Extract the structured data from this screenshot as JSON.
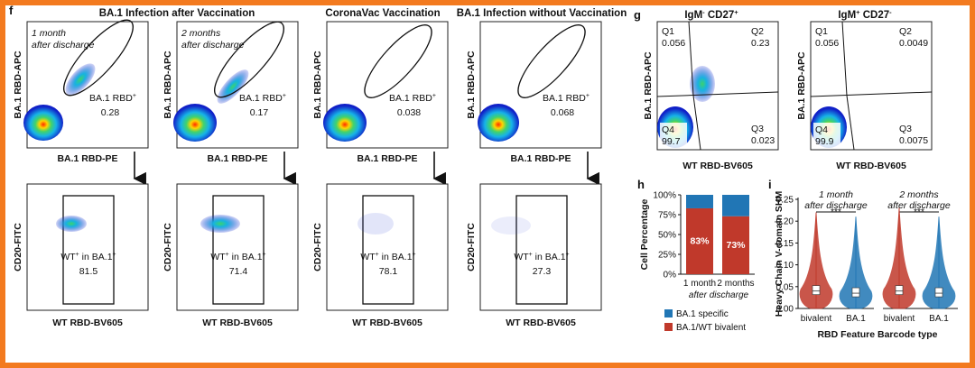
{
  "panel_labels": {
    "f": "f",
    "g": "g",
    "h": "h",
    "i": "i"
  },
  "panel_f": {
    "column_titles": [
      "BA.1 Infection after Vaccination",
      "CoronaVac Vaccination",
      "BA.1 Infection without Vaccination"
    ],
    "timepoints": [
      "1 month",
      "after discharge",
      "2 months",
      "after discharge"
    ],
    "axis_labels": {
      "top_y": "BA.1 RBD-APC",
      "top_x": "BA.1 RBD-PE",
      "bottom_y": "CD20-FITC",
      "bottom_x": "WT RBD-BV605"
    },
    "top_plots": [
      {
        "gate_label": "BA.1 RBD",
        "gate_sup": "+",
        "value": "0.28"
      },
      {
        "gate_label": "BA.1 RBD",
        "gate_sup": "+",
        "value": "0.17"
      },
      {
        "gate_label": "BA.1 RBD",
        "gate_sup": "+",
        "value": "0.038"
      },
      {
        "gate_label": "BA.1 RBD",
        "gate_sup": "+",
        "value": "0.068"
      }
    ],
    "bottom_plots": [
      {
        "gate_label_a": "WT",
        "gate_label_b": " in BA.1",
        "sup": "+",
        "value": "81.5"
      },
      {
        "gate_label_a": "WT",
        "gate_label_b": " in BA.1",
        "sup": "+",
        "value": "71.4"
      },
      {
        "gate_label_a": "WT",
        "gate_label_b": " in BA.1",
        "sup": "+",
        "value": "78.1"
      },
      {
        "gate_label_a": "WT",
        "gate_label_b": " in BA.1",
        "sup": "+",
        "value": "27.3"
      }
    ]
  },
  "panel_g": {
    "plots": [
      {
        "title_a": "IgM",
        "sup_a": "-",
        "title_b": " CD27",
        "sup_b": "+",
        "q1": "Q1",
        "q1_val": "0.056",
        "q2": "Q2",
        "q2_val": "0.23",
        "q3": "Q3",
        "q3_val": "0.023",
        "q4": "Q4",
        "q4_val": "99.7"
      },
      {
        "title_a": "IgM",
        "sup_a": "+",
        "title_b": " CD27",
        "sup_b": "-",
        "q1": "Q1",
        "q1_val": "0.056",
        "q2": "Q2",
        "q2_val": "0.0049",
        "q3": "Q3",
        "q3_val": "0.0075",
        "q4": "Q4",
        "q4_val": "99.9"
      }
    ],
    "y_label": "BA.1 RBD-APC",
    "x_label": "WT RBD-BV605"
  },
  "chart_data": [
    {
      "type": "bar",
      "stacked": true,
      "title": "",
      "ylabel": "Cell Percentage",
      "xlabel": "after discharge",
      "categories": [
        "1 month",
        "2 months"
      ],
      "ylim": [
        0,
        100
      ],
      "yticks": [
        "0%",
        "25%",
        "50%",
        "75%",
        "100%"
      ],
      "series": [
        {
          "name": "BA.1/WT bivalent",
          "color": "#c0392b",
          "values": [
            83,
            73
          ],
          "labels": [
            "83%",
            "73%"
          ]
        },
        {
          "name": "BA.1 specific",
          "color": "#2176b5",
          "values": [
            17,
            27
          ]
        }
      ],
      "legend": "bottom"
    },
    {
      "type": "violin",
      "ylabel": "Heavy Chain V-domain SHM",
      "xlabel": "RBD Feature Barcode type",
      "ylim": [
        0,
        0.25
      ],
      "yticks": [
        "0.00",
        "0.05",
        "0.10",
        "0.15",
        "0.20",
        "0.25"
      ],
      "groups": [
        {
          "title": [
            "1 month",
            "after discharge"
          ],
          "significance": "***",
          "categories": [
            "bivalent",
            "BA.1"
          ],
          "medians": [
            0.04,
            0.035
          ],
          "maxima": [
            0.22,
            0.21
          ]
        },
        {
          "title": [
            "2 months",
            "after discharge"
          ],
          "significance": "***",
          "categories": [
            "bivalent",
            "BA.1"
          ],
          "medians": [
            0.04,
            0.035
          ],
          "maxima": [
            0.23,
            0.21
          ]
        }
      ],
      "colors": {
        "bivalent": "#c0392b",
        "BA.1": "#2176b5"
      }
    }
  ]
}
